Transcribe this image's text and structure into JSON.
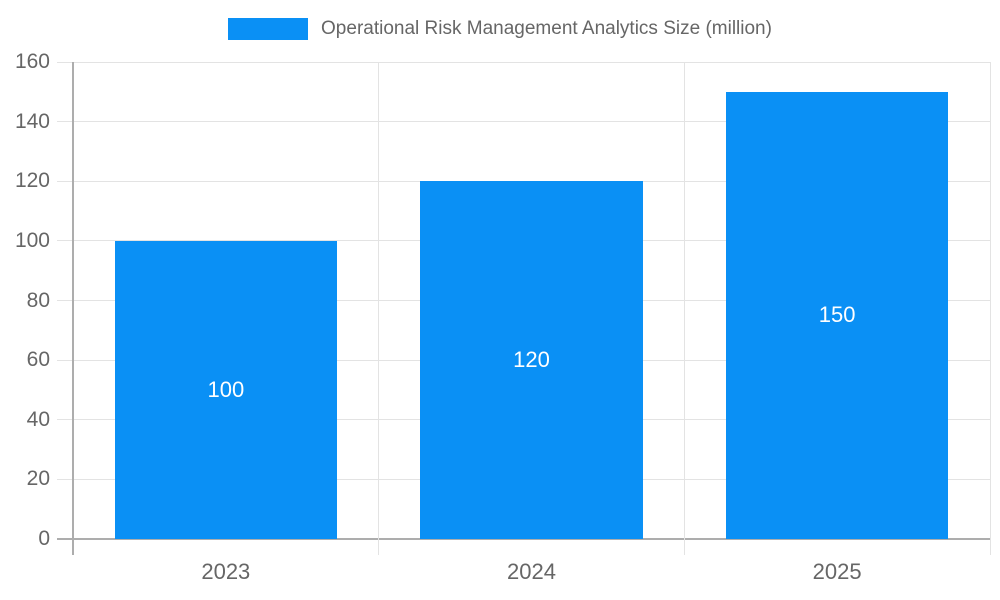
{
  "legend": {
    "label": "Operational Risk Management Analytics Size (million)",
    "swatch_color": "#0a90f5"
  },
  "colors": {
    "bar": "#0a90f5",
    "axis_text": "#666666",
    "grid_line": "#e3e3e3",
    "zero_line": "#adadad",
    "data_label": "#ffffff",
    "background": "#ffffff"
  },
  "chart_data": {
    "type": "bar",
    "title": "",
    "series_name": "Operational Risk Management Analytics Size (million)",
    "categories": [
      "2023",
      "2024",
      "2025"
    ],
    "values": [
      100,
      120,
      150
    ],
    "data_labels": [
      "100",
      "120",
      "150"
    ],
    "xlabel": "",
    "ylabel": "",
    "ylim": [
      0,
      160
    ],
    "yticks": [
      0,
      20,
      40,
      60,
      80,
      100,
      120,
      140,
      160
    ],
    "grid": true,
    "legend_position": "top-center",
    "data_label_position": "center-of-bar"
  }
}
